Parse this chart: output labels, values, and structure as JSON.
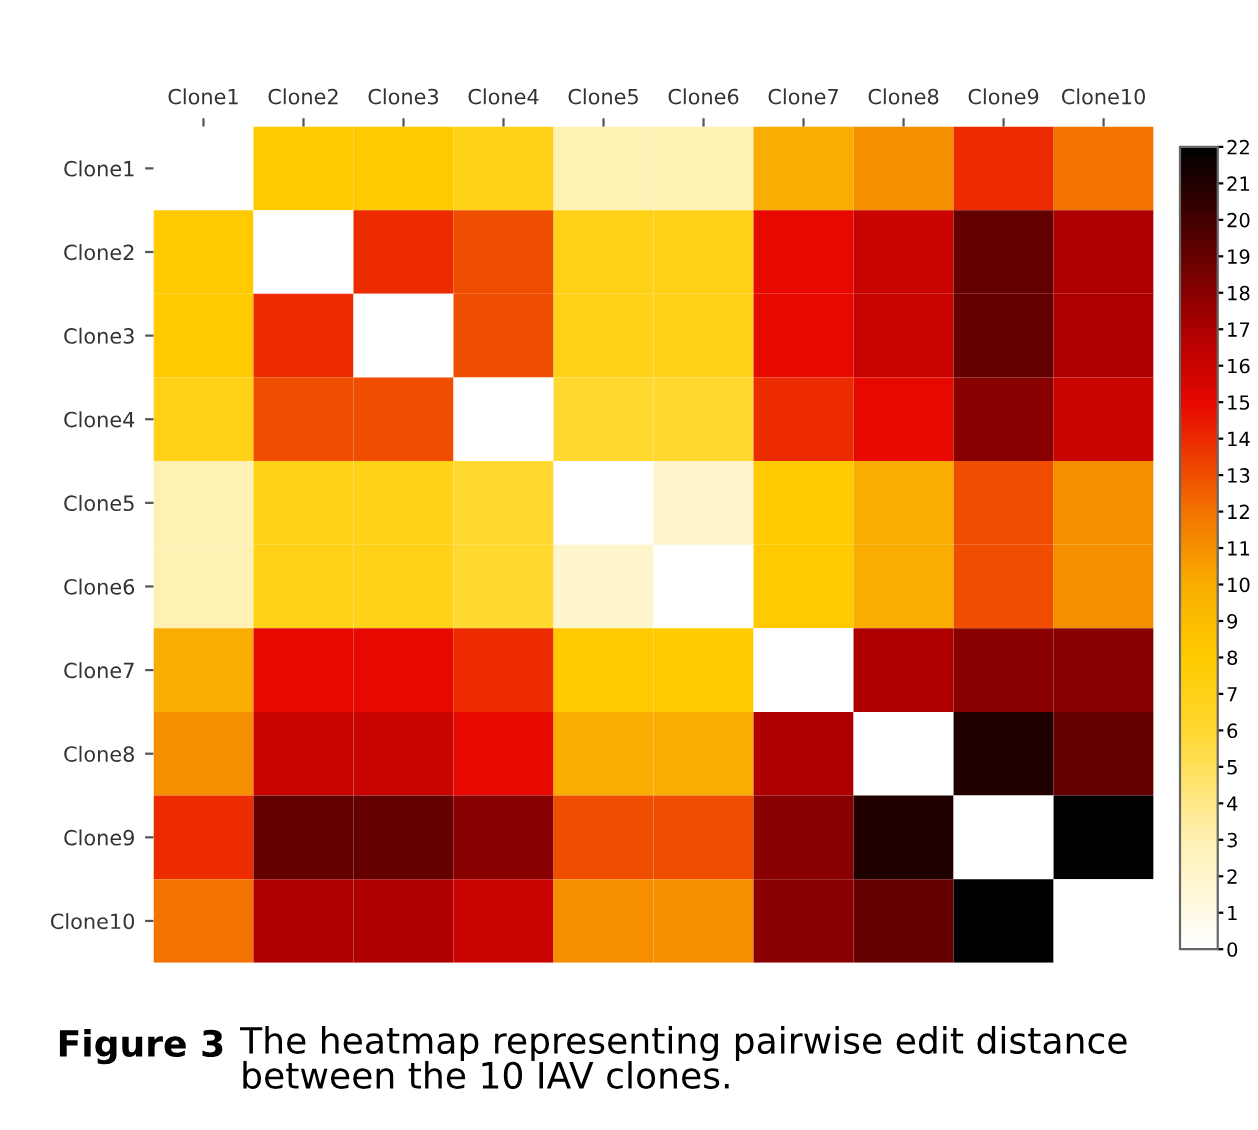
{
  "chart_data": {
    "type": "heatmap",
    "categories": [
      "Clone1",
      "Clone2",
      "Clone3",
      "Clone4",
      "Clone5",
      "Clone6",
      "Clone7",
      "Clone8",
      "Clone9",
      "Clone10"
    ],
    "y_categories": [
      "Clone1",
      "Clone2",
      "Clone3",
      "Clone4",
      "Clone5",
      "Clone6",
      "Clone7",
      "Clone8",
      "Clone9",
      "Clone10"
    ],
    "cells": [
      [
        0,
        8,
        8,
        7,
        3,
        3,
        10,
        11,
        14,
        12
      ],
      [
        8,
        0,
        14,
        13,
        7,
        7,
        15,
        16,
        19,
        17
      ],
      [
        8,
        14,
        0,
        13,
        7,
        7,
        15,
        16,
        19,
        17
      ],
      [
        7,
        13,
        13,
        0,
        6,
        6,
        14,
        15,
        18,
        16
      ],
      [
        3,
        7,
        7,
        6,
        0,
        2,
        8,
        10,
        13,
        11
      ],
      [
        3,
        7,
        7,
        6,
        2,
        0,
        8,
        10,
        13,
        11
      ],
      [
        10,
        15,
        15,
        14,
        8,
        8,
        0,
        17,
        18,
        18
      ],
      [
        11,
        16,
        16,
        15,
        10,
        10,
        17,
        0,
        21,
        19
      ],
      [
        14,
        19,
        19,
        18,
        13,
        13,
        18,
        21,
        0,
        22
      ],
      [
        12,
        17,
        17,
        16,
        11,
        11,
        18,
        19,
        22,
        0
      ]
    ],
    "clim": [
      0,
      22
    ],
    "cticks": [
      0,
      1,
      2,
      3,
      4,
      5,
      6,
      7,
      8,
      9,
      10,
      11,
      12,
      13,
      14,
      15,
      16,
      17,
      18,
      19,
      20,
      21,
      22
    ],
    "annotations": [
      "Figure 3",
      "The heatmap representing pairwise edit distance between the 10 IAV clones."
    ]
  }
}
